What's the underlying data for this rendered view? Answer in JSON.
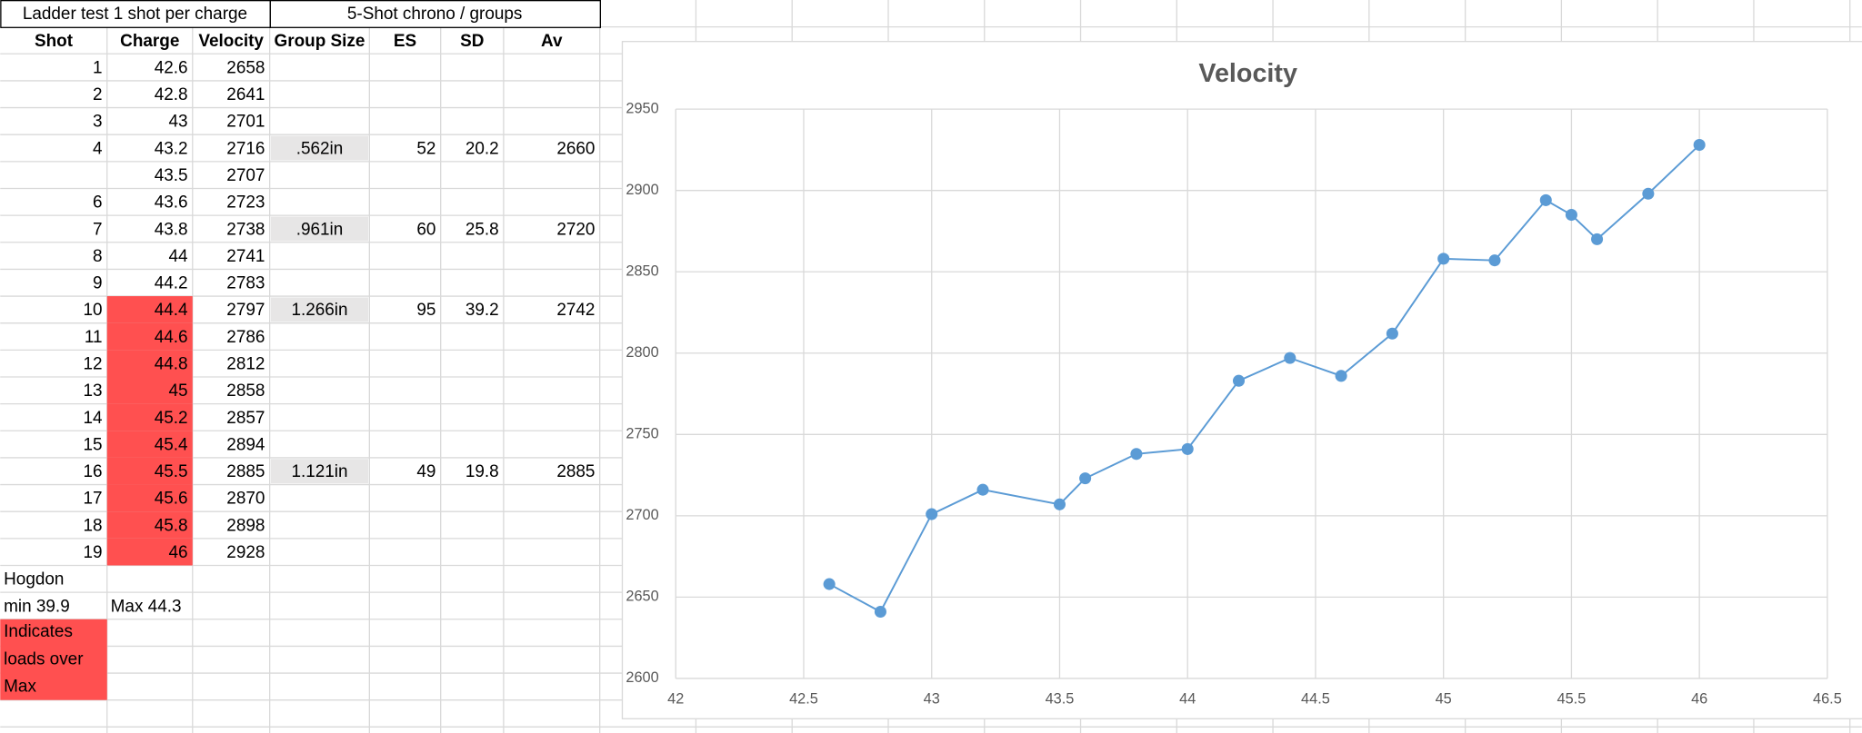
{
  "table": {
    "group_headers": [
      "Ladder test 1 shot per charge",
      "5-Shot chrono / groups"
    ],
    "columns": [
      "Shot",
      "Charge",
      "Velocity",
      "Group Size",
      "ES",
      "SD",
      "Av"
    ],
    "over_max_color": "#ff5050",
    "group_fill": "#e7e6e6",
    "rows": [
      {
        "shot": 1,
        "charge": 42.6,
        "velocity": 2658
      },
      {
        "shot": 2,
        "charge": 42.8,
        "velocity": 2641
      },
      {
        "shot": 3,
        "charge": 43,
        "velocity": 2701
      },
      {
        "shot": 4,
        "charge": 43.2,
        "velocity": 2716,
        "group": ".562in",
        "es": 52,
        "sd": 20.2,
        "av": 2660
      },
      {
        "charge": 43.5,
        "velocity": 2707
      },
      {
        "shot": 6,
        "charge": 43.6,
        "velocity": 2723
      },
      {
        "shot": 7,
        "charge": 43.8,
        "velocity": 2738,
        "group": ".961in",
        "es": 60,
        "sd": 25.8,
        "av": 2720
      },
      {
        "shot": 8,
        "charge": 44,
        "velocity": 2741
      },
      {
        "shot": 9,
        "charge": 44.2,
        "velocity": 2783
      },
      {
        "shot": 10,
        "charge": 44.4,
        "velocity": 2797,
        "group": "1.266in",
        "es": 95,
        "sd": 39.2,
        "av": 2742,
        "over_max": true
      },
      {
        "shot": 11,
        "charge": 44.6,
        "velocity": 2786,
        "over_max": true
      },
      {
        "shot": 12,
        "charge": 44.8,
        "velocity": 2812,
        "over_max": true
      },
      {
        "shot": 13,
        "charge": 45,
        "velocity": 2858,
        "over_max": true
      },
      {
        "shot": 14,
        "charge": 45.2,
        "velocity": 2857,
        "over_max": true
      },
      {
        "shot": 15,
        "charge": 45.4,
        "velocity": 2894,
        "over_max": true
      },
      {
        "shot": 16,
        "charge": 45.5,
        "velocity": 2885,
        "group": "1.121in",
        "es": 49,
        "sd": 19.8,
        "av": 2885,
        "over_max": true
      },
      {
        "shot": 17,
        "charge": 45.6,
        "velocity": 2870,
        "over_max": true
      },
      {
        "shot": 18,
        "charge": 45.8,
        "velocity": 2898,
        "over_max": true
      },
      {
        "shot": 19,
        "charge": 46,
        "velocity": 2928,
        "over_max": true
      }
    ],
    "notes": {
      "powder": "Hogdon",
      "min": "min 39.9",
      "max": "Max 44.3",
      "legend": "Indicates loads over Max"
    }
  },
  "chart_data": {
    "type": "line",
    "title": "Velocity",
    "color": "#5b9bd5",
    "x": [
      42.6,
      42.8,
      43,
      43.2,
      43.5,
      43.6,
      43.8,
      44,
      44.2,
      44.4,
      44.6,
      44.8,
      45,
      45.2,
      45.4,
      45.5,
      45.6,
      45.8,
      46
    ],
    "values": [
      2658,
      2641,
      2701,
      2716,
      2707,
      2723,
      2738,
      2741,
      2783,
      2797,
      2786,
      2812,
      2858,
      2857,
      2894,
      2885,
      2870,
      2898,
      2928
    ],
    "xlim": [
      42,
      46.5
    ],
    "xticks": [
      42,
      42.5,
      43,
      43.5,
      44,
      44.5,
      45,
      45.5,
      46,
      46.5
    ],
    "ylim": [
      2600,
      2950
    ],
    "yticks": [
      2600,
      2650,
      2700,
      2750,
      2800,
      2850,
      2900,
      2950
    ],
    "grid": true
  }
}
